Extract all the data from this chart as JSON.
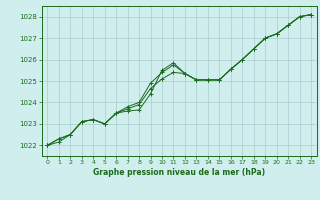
{
  "x": [
    0,
    1,
    2,
    3,
    4,
    5,
    6,
    7,
    8,
    9,
    10,
    11,
    12,
    13,
    14,
    15,
    16,
    17,
    18,
    19,
    20,
    21,
    22,
    23
  ],
  "line1": [
    1022.0,
    1022.3,
    1022.5,
    1023.1,
    1023.2,
    1023.0,
    1023.5,
    1023.8,
    1024.0,
    1024.9,
    1025.4,
    1025.75,
    1025.35,
    1025.05,
    1025.05,
    1025.05,
    1025.55,
    1026.0,
    1026.5,
    1027.0,
    1027.2,
    1027.6,
    1028.0,
    1028.1
  ],
  "line2": [
    1022.0,
    1022.3,
    1022.5,
    1023.1,
    1023.2,
    1023.0,
    1023.5,
    1023.6,
    1023.65,
    1024.4,
    1025.5,
    1025.85,
    1025.35,
    1025.05,
    1025.05,
    1025.05,
    1025.55,
    1026.0,
    1026.5,
    1027.0,
    1027.2,
    1027.6,
    1028.0,
    1028.1
  ],
  "line3": [
    1022.0,
    1022.15,
    1022.5,
    1023.1,
    1023.2,
    1023.0,
    1023.5,
    1023.7,
    1023.9,
    1024.65,
    1025.1,
    1025.4,
    1025.35,
    1025.05,
    1025.05,
    1025.05,
    1025.55,
    1026.0,
    1026.5,
    1027.0,
    1027.2,
    1027.6,
    1028.0,
    1028.1
  ],
  "bg_color": "#d0eeee",
  "grid_color": "#aacccc",
  "line_color": "#1a6b1a",
  "xlabel": "Graphe pression niveau de la mer (hPa)",
  "ylim": [
    1021.5,
    1028.5
  ],
  "xlim": [
    -0.5,
    23.5
  ],
  "yticks": [
    1022,
    1023,
    1024,
    1025,
    1026,
    1027,
    1028
  ],
  "xticks": [
    0,
    1,
    2,
    3,
    4,
    5,
    6,
    7,
    8,
    9,
    10,
    11,
    12,
    13,
    14,
    15,
    16,
    17,
    18,
    19,
    20,
    21,
    22,
    23
  ]
}
